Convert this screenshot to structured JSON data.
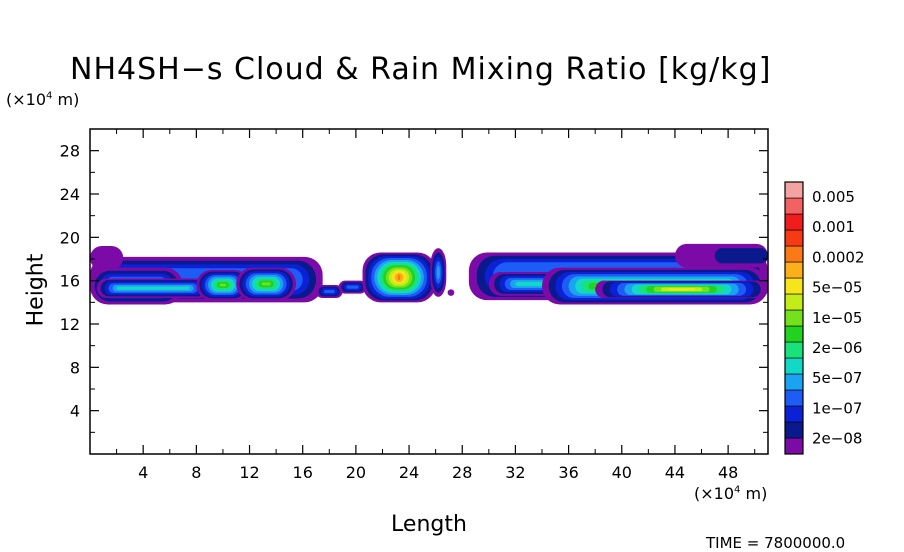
{
  "chart_data": {
    "type": "heatmap",
    "title": "NH4SH−s Cloud & Rain Mixing Ratio [kg/kg]",
    "ylabel": "Height",
    "xlabel": "Length",
    "y_unit": "(×10",
    "y_unit_exp": "4",
    "y_unit_tail": " m)",
    "x_unit": "(×10",
    "x_unit_exp": "4",
    "x_unit_tail": " m)",
    "time_label": "TIME = 7800000.0",
    "xlim": [
      0,
      51
    ],
    "ylim": [
      0,
      30
    ],
    "x_ticks": [
      4,
      8,
      12,
      16,
      20,
      24,
      28,
      32,
      36,
      40,
      44,
      48
    ],
    "y_ticks": [
      4,
      8,
      12,
      16,
      20,
      24,
      28
    ],
    "colorbar": {
      "labels": [
        "0.005",
        "0.001",
        "0.0002",
        "5e−05",
        "1e−05",
        "2e−06",
        "5e−07",
        "1e−07",
        "2e−08"
      ],
      "colors": [
        "#7b0aa6",
        "#0a1a8c",
        "#0b21d6",
        "#1d5cf5",
        "#1aa3f0",
        "#12d8c6",
        "#18e27a",
        "#22d21e",
        "#73e21c",
        "#c4ec18",
        "#f5e51a",
        "#fbb01a",
        "#f97a16",
        "#f53a14",
        "#f01d1d",
        "#f36262",
        "#f4a3a3"
      ]
    },
    "cloud_regions": [
      {
        "name": "left band",
        "x_range": [
          0,
          17.5
        ],
        "y_range": [
          13.8,
          19.2
        ],
        "peak": "1e−05"
      },
      {
        "name": "cell near 10",
        "x_range": [
          8,
          12
        ],
        "y_range": [
          14.2,
          17
        ],
        "peak": "1e−05"
      },
      {
        "name": "cell near 13",
        "x_range": [
          11,
          15.5
        ],
        "y_range": [
          14.2,
          17.2
        ],
        "peak": "1e−05"
      },
      {
        "name": "central cell",
        "x_range": [
          20.5,
          26.5
        ],
        "y_range": [
          14,
          18.6
        ],
        "peak": "0.0002"
      },
      {
        "name": "plume near 26",
        "x_range": [
          25.5,
          27
        ],
        "y_range": [
          14.5,
          19
        ],
        "peak": "5e−07"
      },
      {
        "name": "right band",
        "x_range": [
          28.5,
          51
        ],
        "y_range": [
          13.8,
          19.4
        ],
        "peak": "1e−05"
      }
    ]
  }
}
